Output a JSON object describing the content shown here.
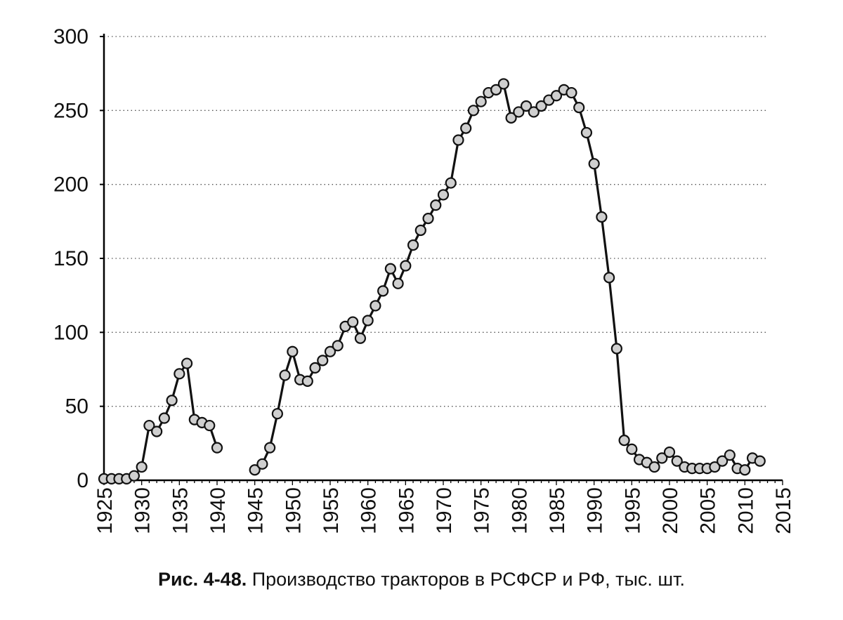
{
  "caption": {
    "label": "Рис. 4-48.",
    "text": " Производство тракторов в РСФСР и РФ, тыс. шт."
  },
  "chart_data": {
    "type": "line",
    "title": "Производство тракторов в РСФСР и РФ, тыс. шт.",
    "xlabel": "",
    "ylabel": "",
    "xlim": [
      1925,
      2015
    ],
    "ylim": [
      0,
      300
    ],
    "yticks": [
      "0",
      "50",
      "100",
      "150",
      "200",
      "250",
      "300"
    ],
    "xticks": [
      "1925",
      "1930",
      "1935",
      "1940",
      "1945",
      "1950",
      "1955",
      "1960",
      "1965",
      "1970",
      "1975",
      "1980",
      "1985",
      "1990",
      "1995",
      "2000",
      "2005",
      "2010",
      "2015"
    ],
    "grid": "horizontal dotted",
    "legend": "none",
    "series": [
      {
        "x": [
          1925,
          1926,
          1927,
          1928,
          1929,
          1930,
          1931,
          1932,
          1933,
          1934,
          1935,
          1936,
          1937,
          1938,
          1939,
          1940
        ],
        "y": [
          1,
          1,
          1,
          1,
          3,
          9,
          37,
          33,
          42,
          54,
          72,
          79,
          41,
          39,
          37,
          22
        ]
      },
      {
        "x": [
          1945,
          1946,
          1947,
          1948,
          1949,
          1950,
          1951,
          1952,
          1953,
          1954,
          1955,
          1956,
          1957,
          1958,
          1959,
          1960,
          1961,
          1962,
          1963,
          1964,
          1965,
          1966,
          1967,
          1968,
          1969,
          1970,
          1971,
          1972,
          1973,
          1974,
          1975,
          1976,
          1977,
          1978,
          1979,
          1980,
          1981,
          1982,
          1983,
          1984,
          1985,
          1986,
          1987,
          1988,
          1989,
          1990,
          1991,
          1992,
          1993,
          1994,
          1995,
          1996,
          1997,
          1998,
          1999,
          2000,
          2001,
          2002,
          2003,
          2004,
          2005,
          2006,
          2007,
          2008,
          2009,
          2010,
          2011,
          2012
        ],
        "y": [
          7,
          11,
          22,
          45,
          71,
          87,
          68,
          67,
          76,
          81,
          87,
          91,
          104,
          107,
          96,
          108,
          118,
          128,
          143,
          133,
          145,
          159,
          169,
          177,
          186,
          193,
          201,
          230,
          238,
          250,
          256,
          262,
          264,
          268,
          245,
          249,
          253,
          249,
          253,
          257,
          260,
          264,
          262,
          252,
          235,
          214,
          178,
          137,
          89,
          27,
          21,
          14,
          12,
          9,
          15,
          19,
          13,
          9,
          8,
          8,
          8,
          9,
          13,
          17,
          8,
          7,
          15,
          13
        ]
      }
    ]
  }
}
